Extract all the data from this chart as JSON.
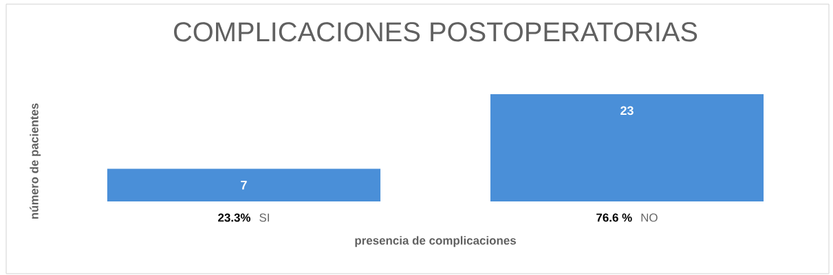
{
  "chart_data": {
    "type": "bar",
    "title": "COMPLICACIONES POSTOPERATORIAS",
    "xlabel": "presencia de complicaciones",
    "ylabel": "número de pacientes",
    "categories": [
      "SI",
      "NO"
    ],
    "values": [
      7,
      23
    ],
    "color": "#4a8fd8",
    "data_labels": true,
    "annotations": [
      "23.3%",
      "76.6 %"
    ]
  }
}
